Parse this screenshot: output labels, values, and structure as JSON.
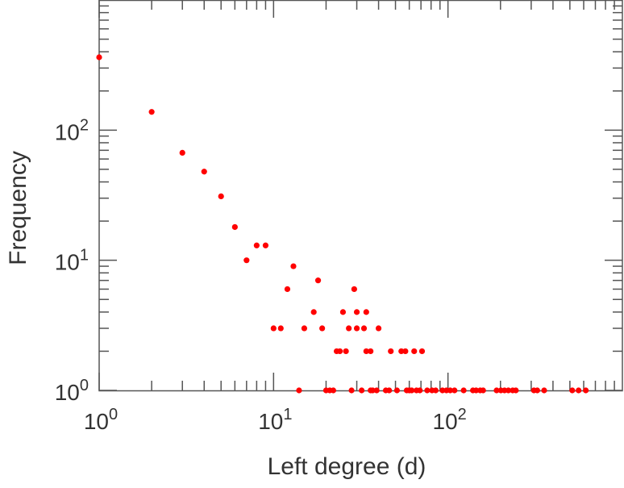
{
  "chart_data": {
    "type": "scatter",
    "title": "",
    "xlabel": "Left degree (d)",
    "ylabel": "Frequency",
    "xscale": "log",
    "yscale": "log",
    "xlim": [
      1,
      1000
    ],
    "ylim": [
      1,
      1000
    ],
    "xticks": [
      {
        "base": "10",
        "exp": "0",
        "value": 1
      },
      {
        "base": "10",
        "exp": "1",
        "value": 10
      },
      {
        "base": "10",
        "exp": "2",
        "value": 100
      }
    ],
    "yticks": [
      {
        "base": "10",
        "exp": "0",
        "value": 1
      },
      {
        "base": "10",
        "exp": "1",
        "value": 10
      },
      {
        "base": "10",
        "exp": "2",
        "value": 100
      }
    ],
    "grid": false,
    "marker_color": "#ff0000",
    "points": [
      [
        1,
        363
      ],
      [
        2,
        138
      ],
      [
        3,
        67
      ],
      [
        4,
        48
      ],
      [
        5,
        31
      ],
      [
        6,
        18
      ],
      [
        7,
        10
      ],
      [
        8,
        13
      ],
      [
        9,
        13
      ],
      [
        10,
        3
      ],
      [
        11,
        3
      ],
      [
        12,
        6
      ],
      [
        13,
        9
      ],
      [
        14,
        1
      ],
      [
        15,
        3
      ],
      [
        17,
        4
      ],
      [
        18,
        7
      ],
      [
        19,
        3
      ],
      [
        20,
        1
      ],
      [
        21,
        1
      ],
      [
        22,
        1
      ],
      [
        23,
        2
      ],
      [
        24,
        2
      ],
      [
        25,
        4
      ],
      [
        26,
        2
      ],
      [
        27,
        3
      ],
      [
        28,
        1
      ],
      [
        29,
        6
      ],
      [
        30,
        4
      ],
      [
        30,
        3
      ],
      [
        32,
        1
      ],
      [
        33,
        3
      ],
      [
        34,
        4
      ],
      [
        34,
        2
      ],
      [
        36,
        2
      ],
      [
        36,
        1
      ],
      [
        37,
        1
      ],
      [
        39,
        1
      ],
      [
        40,
        3
      ],
      [
        44,
        1
      ],
      [
        46,
        1
      ],
      [
        47,
        2
      ],
      [
        51,
        1
      ],
      [
        54,
        2
      ],
      [
        57,
        2
      ],
      [
        58,
        1
      ],
      [
        60,
        1
      ],
      [
        62,
        1
      ],
      [
        64,
        2
      ],
      [
        66,
        1
      ],
      [
        69,
        1
      ],
      [
        71,
        2
      ],
      [
        76,
        1
      ],
      [
        81,
        1
      ],
      [
        85,
        1
      ],
      [
        93,
        1
      ],
      [
        98,
        1
      ],
      [
        103,
        1
      ],
      [
        109,
        1
      ],
      [
        123,
        1
      ],
      [
        139,
        1
      ],
      [
        145,
        1
      ],
      [
        153,
        1
      ],
      [
        159,
        1
      ],
      [
        190,
        1
      ],
      [
        201,
        1
      ],
      [
        211,
        1
      ],
      [
        222,
        1
      ],
      [
        235,
        1
      ],
      [
        245,
        1
      ],
      [
        311,
        1
      ],
      [
        325,
        1
      ],
      [
        356,
        1
      ],
      [
        516,
        1
      ],
      [
        561,
        1
      ],
      [
        617,
        1
      ]
    ]
  }
}
